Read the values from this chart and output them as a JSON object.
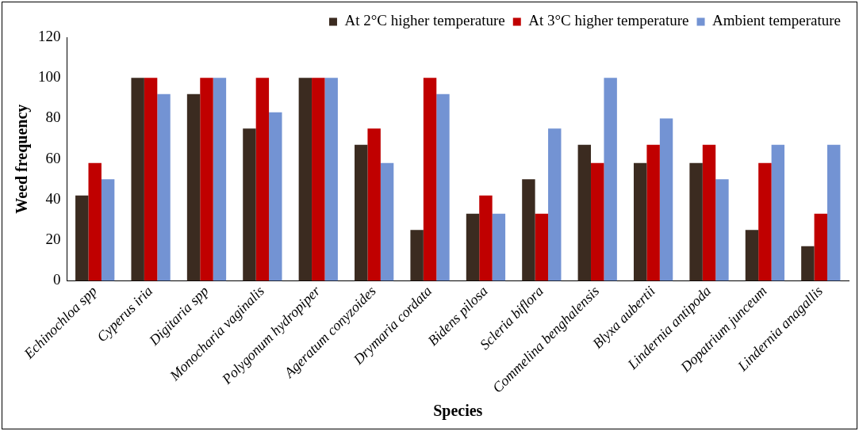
{
  "chart_data": {
    "type": "bar",
    "xlabel": "Species",
    "ylabel": "Weed frequency",
    "categories": [
      "Echinochloa spp",
      "Cyperus iria",
      "Digitaria spp",
      "Monocharia vaginalis",
      "Polygonum hydropiper",
      "Ageratum conyzoides",
      "Drymaria cordata",
      "Bidens pilosa",
      "Scleria biflora",
      "Commelina benghalensis",
      "Blyxa aubertii",
      "Lindernia antipoda",
      "Dopatrium junceum",
      "Lindernia anagallis"
    ],
    "series": [
      {
        "name": "At 2°C higher temperature",
        "color": "#3b2b20",
        "values": [
          42,
          100,
          92,
          75,
          100,
          67,
          25,
          33,
          50,
          67,
          58,
          58,
          25,
          17
        ]
      },
      {
        "name": "At 3°C higher temperature",
        "color": "#c00000",
        "values": [
          58,
          100,
          100,
          100,
          100,
          75,
          100,
          42,
          33,
          58,
          67,
          67,
          58,
          33
        ]
      },
      {
        "name": "Ambient temperature",
        "color": "#7393d3",
        "values": [
          50,
          92,
          100,
          83,
          100,
          58,
          92,
          33,
          75,
          100,
          80,
          50,
          67,
          67
        ]
      }
    ],
    "ylim": [
      0,
      120
    ],
    "yticks": [
      0,
      20,
      40,
      60,
      80,
      100,
      120
    ],
    "grid": false,
    "legend": "top"
  }
}
